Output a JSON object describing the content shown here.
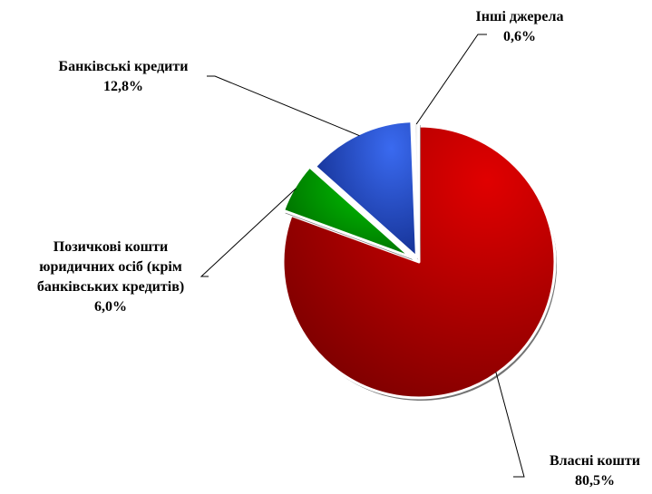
{
  "chart_data": {
    "type": "pie",
    "title": "",
    "slices": [
      {
        "label_lines": [
          "Власні кошти"
        ],
        "value": 80.5,
        "value_label": "80,5%",
        "color": "#e00000",
        "color_dark": "#7a0000"
      },
      {
        "label_lines": [
          "Позичкові кошти",
          "юридичних осіб (крім",
          "банківських кредитів)"
        ],
        "value": 6.0,
        "value_label": "6,0%",
        "color": "#00c800",
        "color_dark": "#006400"
      },
      {
        "label_lines": [
          "Банківські кредити"
        ],
        "value": 12.8,
        "value_label": "12,8%",
        "color": "#3a6af0",
        "color_dark": "#102a88"
      },
      {
        "label_lines": [
          "Інші джерела"
        ],
        "value": 0.6,
        "value_label": "0,6%",
        "color": "#ffffff",
        "color_dark": "#d0d0d0"
      }
    ],
    "start_angle_deg": 0,
    "direction": "clockwise",
    "exploded": true,
    "legend": "none"
  }
}
